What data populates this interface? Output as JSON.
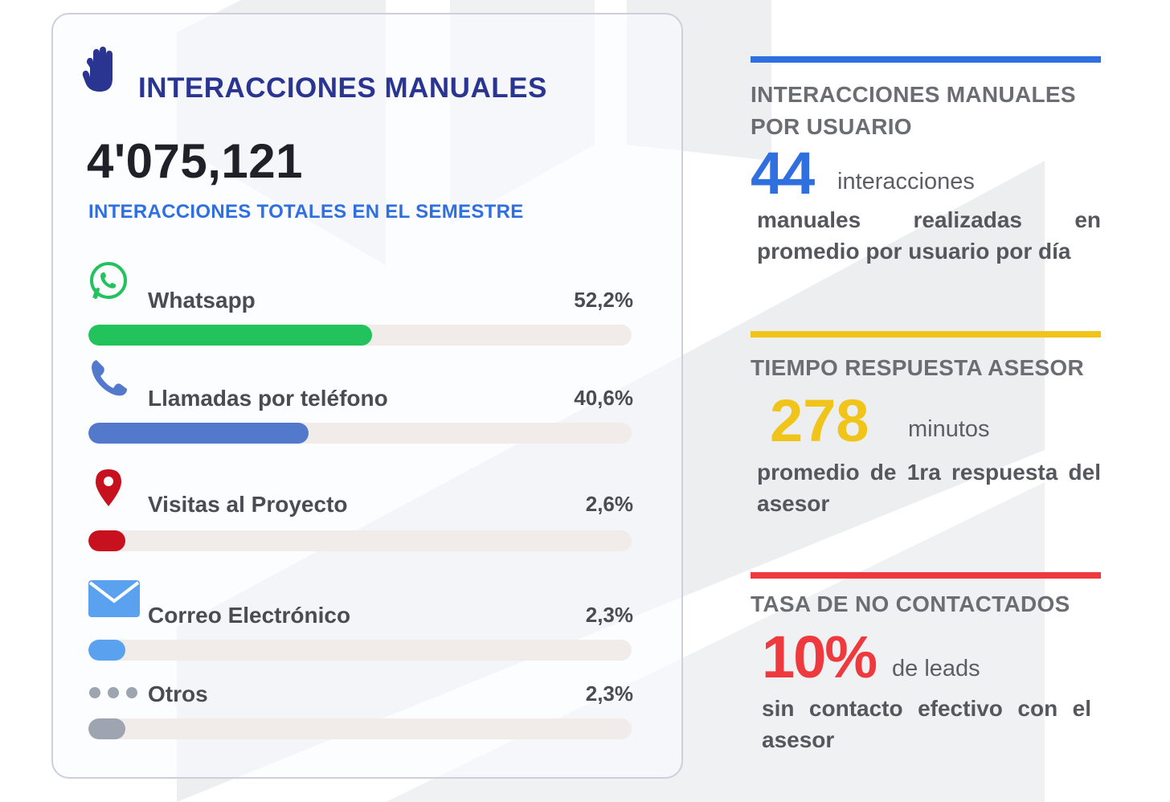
{
  "colors": {
    "navy": "#2a3592",
    "blue": "#2f6fe0",
    "whatsapp": "#22c35d",
    "phone": "#5279cc",
    "visits": "#c8111e",
    "email": "#5aa2ef",
    "others": "#9ea4b0",
    "yellow": "#f0c419",
    "red": "#ee3a3f"
  },
  "card": {
    "icon": "hand-icon",
    "title": "INTERACCIONES MANUALES",
    "total": "4'075,121",
    "total_label": "INTERACCIONES TOTALES EN EL SEMESTRE",
    "channels": [
      {
        "icon": "whatsapp-icon",
        "label": "Whatsapp",
        "pct": "52,2%",
        "value": 52.2
      },
      {
        "icon": "phone-icon",
        "label": "Llamadas por teléfono",
        "pct": "40,6%",
        "value": 40.6
      },
      {
        "icon": "map-pin-icon",
        "label": "Visitas al Proyecto",
        "pct": "2,6%",
        "value": 2.6
      },
      {
        "icon": "mail-icon",
        "label": "Correo Electrónico",
        "pct": "2,3%",
        "value": 2.3
      },
      {
        "icon": "more-dots-icon",
        "label": "Otros",
        "pct": "2,3%",
        "value": 2.3
      }
    ]
  },
  "stats": {
    "per_user": {
      "heading_line1": "INTERACCIONES MANUALES",
      "heading_line2": "POR USUARIO",
      "value": "44",
      "unit": "interacciones",
      "desc": "manuales realizadas en promedio por usuario por día"
    },
    "response_time": {
      "heading": "TIEMPO RESPUESTA ASESOR",
      "value": "278",
      "unit": "minutos",
      "desc": "promedio de 1ra respuesta del asesor"
    },
    "not_contacted": {
      "heading": "TASA DE NO CONTACTADOS",
      "value": "10%",
      "unit": "de leads",
      "desc": "sin contacto efectivo con el asesor"
    }
  }
}
